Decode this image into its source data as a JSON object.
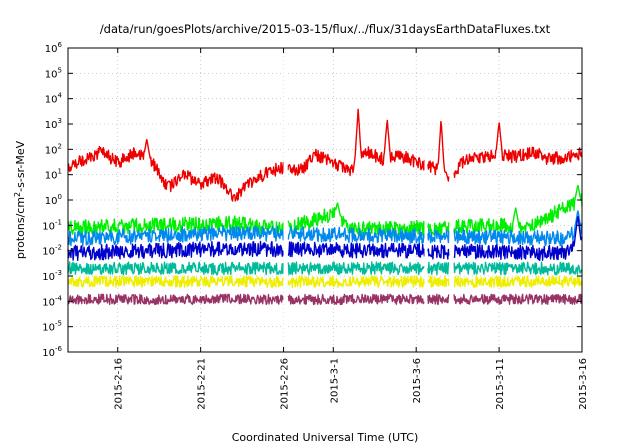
{
  "chart_data": {
    "type": "line",
    "title": "/data/run/goesPlots/archive/2015-03-15/flux/../flux/31daysEarthDataFluxes.txt",
    "xlabel": "Coordinated Universal Time (UTC)",
    "ylabel": {
      "prefix": "protons/cm",
      "sup": "2",
      "suffix": "-s-sr-MeV"
    },
    "x_range": [
      "2015-02-13",
      "2015-03-16"
    ],
    "ylim": [
      1e-06,
      1000000.0
    ],
    "y_scale": "log",
    "grid": true,
    "x_ticks": [
      "2015-2-16",
      "2015-2-21",
      "2015-2-26",
      "2015-3-1",
      "2015-3-6",
      "2015-3-11",
      "2015-3-16"
    ],
    "y_ticks": [
      {
        "base": "10",
        "exp": "-6"
      },
      {
        "base": "10",
        "exp": "-5"
      },
      {
        "base": "10",
        "exp": "-4"
      },
      {
        "base": "10",
        "exp": "-3"
      },
      {
        "base": "10",
        "exp": "-2"
      },
      {
        "base": "10",
        "exp": "-1"
      },
      {
        "base": "10",
        "exp": "0"
      },
      {
        "base": "10",
        "exp": "1"
      },
      {
        "base": "10",
        "exp": "2"
      },
      {
        "base": "10",
        "exp": "3"
      },
      {
        "base": "10",
        "exp": "4"
      },
      {
        "base": "10",
        "exp": "5"
      },
      {
        "base": "10",
        "exp": "6"
      }
    ],
    "data_gaps": [
      [
        "2015-02-26",
        "2015-02-26T06:00"
      ],
      [
        "2015-03-06T12:00",
        "2015-03-06T16:00"
      ],
      [
        "2015-03-08",
        "2015-03-08T06:00"
      ]
    ],
    "series": [
      {
        "color": "#ee0000",
        "baseline": [
          {
            "x": "2015-02-13",
            "y": 20
          },
          {
            "x": "2015-02-14",
            "y": 40
          },
          {
            "x": "2015-02-15",
            "y": 80
          },
          {
            "x": "2015-02-16",
            "y": 30
          },
          {
            "x": "2015-02-17",
            "y": 70
          },
          {
            "x": "2015-02-18",
            "y": 40
          },
          {
            "x": "2015-02-19",
            "y": 3
          },
          {
            "x": "2015-02-20",
            "y": 10
          },
          {
            "x": "2015-02-21",
            "y": 4
          },
          {
            "x": "2015-02-22",
            "y": 8
          },
          {
            "x": "2015-02-23",
            "y": 1
          },
          {
            "x": "2015-02-24",
            "y": 5
          },
          {
            "x": "2015-02-25",
            "y": 12
          },
          {
            "x": "2015-02-26",
            "y": 20
          },
          {
            "x": "2015-02-27",
            "y": 15
          },
          {
            "x": "2015-02-28",
            "y": 60
          },
          {
            "x": "2015-03-01",
            "y": 30
          },
          {
            "x": "2015-03-02",
            "y": 15
          },
          {
            "x": "2015-03-03",
            "y": 80
          },
          {
            "x": "2015-03-04",
            "y": 40
          },
          {
            "x": "2015-03-05",
            "y": 60
          },
          {
            "x": "2015-03-06",
            "y": 30
          },
          {
            "x": "2015-03-07",
            "y": 20
          },
          {
            "x": "2015-03-08",
            "y": 8
          },
          {
            "x": "2015-03-09",
            "y": 40
          },
          {
            "x": "2015-03-10",
            "y": 50
          },
          {
            "x": "2015-03-11",
            "y": 60
          },
          {
            "x": "2015-03-12",
            "y": 50
          },
          {
            "x": "2015-03-13",
            "y": 80
          },
          {
            "x": "2015-03-14",
            "y": 40
          },
          {
            "x": "2015-03-15",
            "y": 50
          },
          {
            "x": "2015-03-16",
            "y": 70
          }
        ],
        "spikes": [
          {
            "x": "2015-02-17T18:00",
            "y": 250
          },
          {
            "x": "2015-02-23T06:00",
            "y": 0.15
          },
          {
            "x": "2015-03-02T12:00",
            "y": 4000
          },
          {
            "x": "2015-03-04T06:00",
            "y": 1500
          },
          {
            "x": "2015-03-07T12:00",
            "y": 1500
          },
          {
            "x": "2015-03-11T00:00",
            "y": 1200
          }
        ]
      },
      {
        "color": "#00ee00",
        "baseline": [
          {
            "x": "2015-02-13",
            "y": 0.08
          },
          {
            "x": "2015-02-23",
            "y": 0.12
          },
          {
            "x": "2015-02-26",
            "y": 0.07
          },
          {
            "x": "2015-03-01",
            "y": 0.3
          },
          {
            "x": "2015-03-02",
            "y": 0.07
          },
          {
            "x": "2015-03-13",
            "y": 0.1
          },
          {
            "x": "2015-03-15",
            "y": 0.5
          },
          {
            "x": "2015-03-16",
            "y": 1
          }
        ],
        "spikes": [
          {
            "x": "2015-03-01T06:00",
            "y": 0.8
          },
          {
            "x": "2015-03-12T00:00",
            "y": 0.5
          },
          {
            "x": "2015-03-15T18:00",
            "y": 4
          }
        ]
      },
      {
        "color": "#0088ee",
        "baseline": [
          {
            "x": "2015-02-13",
            "y": 0.03
          },
          {
            "x": "2015-02-23",
            "y": 0.05
          },
          {
            "x": "2015-03-15",
            "y": 0.03
          },
          {
            "x": "2015-03-16",
            "y": 0.08
          }
        ],
        "spikes": [
          {
            "x": "2015-03-15T18:00",
            "y": 0.4
          }
        ]
      },
      {
        "color": "#0000cc",
        "baseline": [
          {
            "x": "2015-02-13",
            "y": 0.008
          },
          {
            "x": "2015-02-23",
            "y": 0.012
          },
          {
            "x": "2015-03-15",
            "y": 0.008
          },
          {
            "x": "2015-03-16",
            "y": 0.03
          }
        ],
        "spikes": [
          {
            "x": "2015-03-15T18:00",
            "y": 0.25
          }
        ]
      },
      {
        "color": "#00bb99",
        "baseline": [
          {
            "x": "2015-02-13",
            "y": 0.002
          },
          {
            "x": "2015-03-16",
            "y": 0.002
          }
        ]
      },
      {
        "color": "#eeee00",
        "baseline": [
          {
            "x": "2015-02-13",
            "y": 0.0006
          },
          {
            "x": "2015-03-16",
            "y": 0.0006
          }
        ]
      },
      {
        "color": "#993366",
        "baseline": [
          {
            "x": "2015-02-13",
            "y": 0.00012
          },
          {
            "x": "2015-03-16",
            "y": 0.00012
          }
        ]
      }
    ]
  }
}
